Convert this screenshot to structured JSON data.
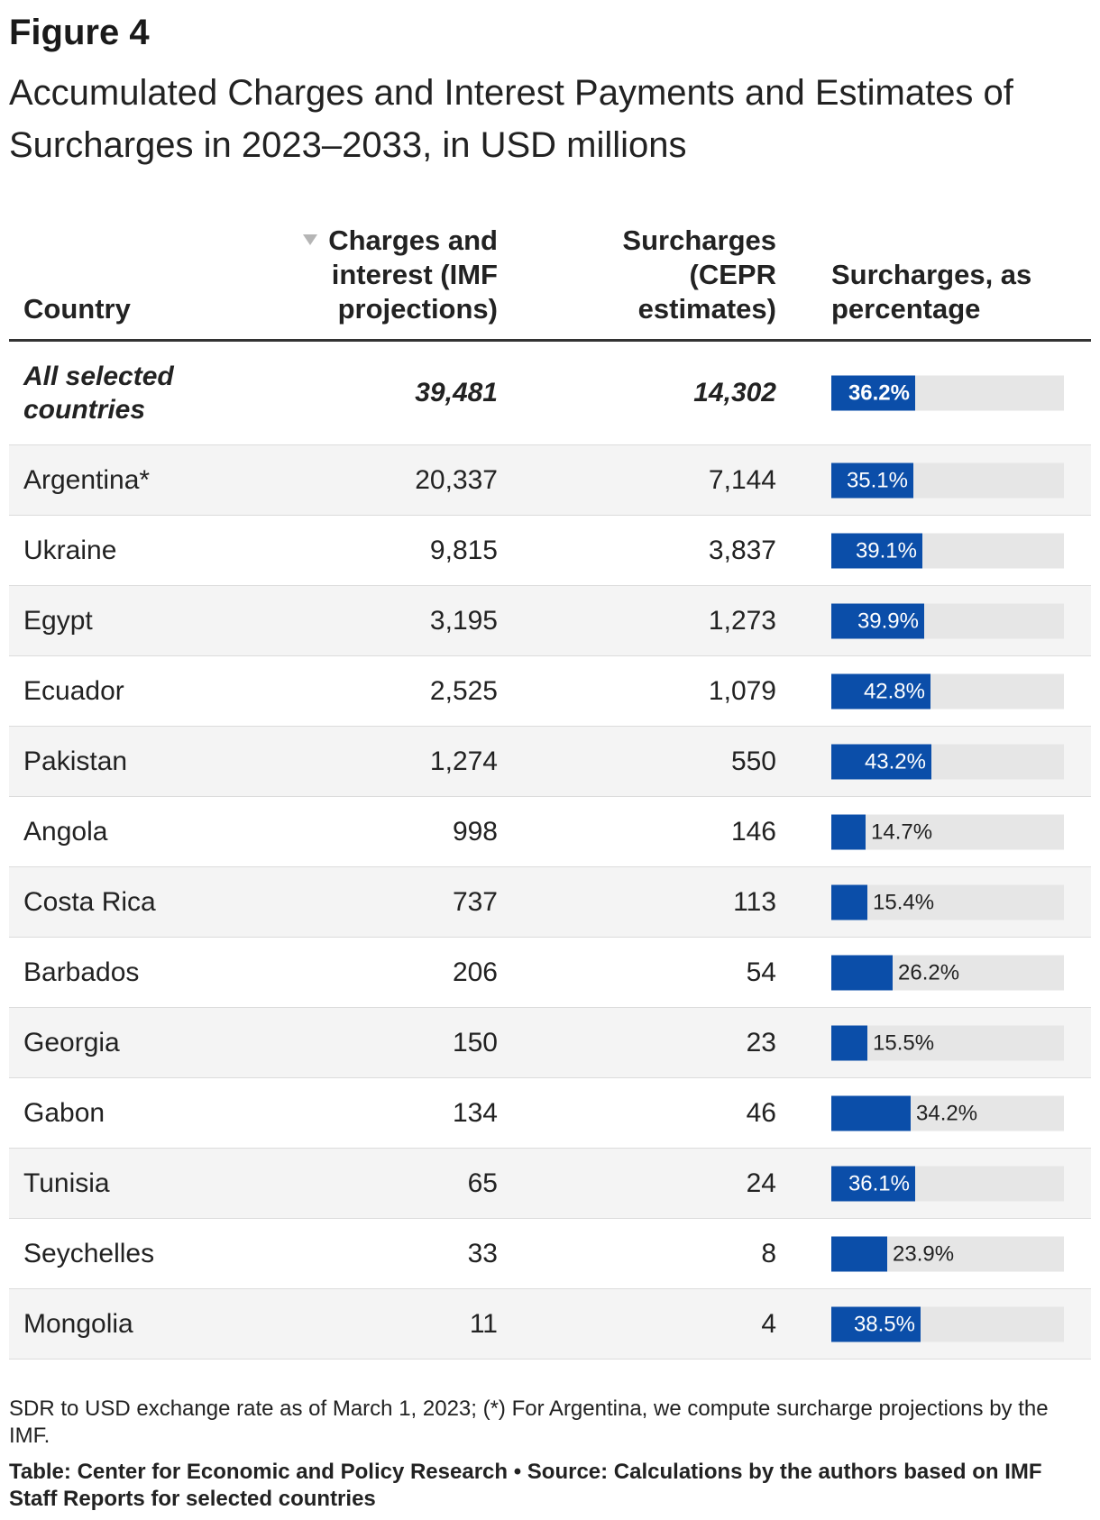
{
  "figure_label": "Figure 4",
  "title": "Accumulated Charges and Interest Payments and Estimates of Surcharges in 2023–2033, in USD millions",
  "columns": {
    "country": "Country",
    "charges": "Charges and interest (IMF projections)",
    "surcharges": "Surcharges (CEPR estimates)",
    "percentage": "Surcharges, as percentage"
  },
  "colors": {
    "bar": "#0b4ea9",
    "track": "#e6e6e6"
  },
  "chart_data": {
    "type": "table",
    "sort": "charges descending",
    "total": {
      "country": "All selected countries",
      "charges": "39,481",
      "surcharges": "14,302",
      "pct": 36.2,
      "pct_label": "36.2%"
    },
    "rows": [
      {
        "country": "Argentina*",
        "charges": "20,337",
        "surcharges": "7,144",
        "pct": 35.1,
        "pct_label": "35.1%"
      },
      {
        "country": "Ukraine",
        "charges": "9,815",
        "surcharges": "3,837",
        "pct": 39.1,
        "pct_label": "39.1%"
      },
      {
        "country": "Egypt",
        "charges": "3,195",
        "surcharges": "1,273",
        "pct": 39.9,
        "pct_label": "39.9%"
      },
      {
        "country": "Ecuador",
        "charges": "2,525",
        "surcharges": "1,079",
        "pct": 42.8,
        "pct_label": "42.8%"
      },
      {
        "country": "Pakistan",
        "charges": "1,274",
        "surcharges": "550",
        "pct": 43.2,
        "pct_label": "43.2%"
      },
      {
        "country": "Angola",
        "charges": "998",
        "surcharges": "146",
        "pct": 14.7,
        "pct_label": "14.7%"
      },
      {
        "country": "Costa Rica",
        "charges": "737",
        "surcharges": "113",
        "pct": 15.4,
        "pct_label": "15.4%"
      },
      {
        "country": "Barbados",
        "charges": "206",
        "surcharges": "54",
        "pct": 26.2,
        "pct_label": "26.2%"
      },
      {
        "country": "Georgia",
        "charges": "150",
        "surcharges": "23",
        "pct": 15.5,
        "pct_label": "15.5%"
      },
      {
        "country": "Gabon",
        "charges": "134",
        "surcharges": "46",
        "pct": 34.2,
        "pct_label": "34.2%"
      },
      {
        "country": "Tunisia",
        "charges": "65",
        "surcharges": "24",
        "pct": 36.1,
        "pct_label": "36.1%"
      },
      {
        "country": "Seychelles",
        "charges": "33",
        "surcharges": "8",
        "pct": 23.9,
        "pct_label": "23.9%"
      },
      {
        "country": "Mongolia",
        "charges": "11",
        "surcharges": "4",
        "pct": 38.5,
        "pct_label": "38.5%"
      }
    ]
  },
  "note": "SDR to USD exchange rate as of March 1, 2023; (*) For Argentina, we compute surcharge projections by the IMF.",
  "source": "Table: Center for Economic and Policy Research • Source: Calculations by the authors based on IMF Staff Reports for selected countries"
}
